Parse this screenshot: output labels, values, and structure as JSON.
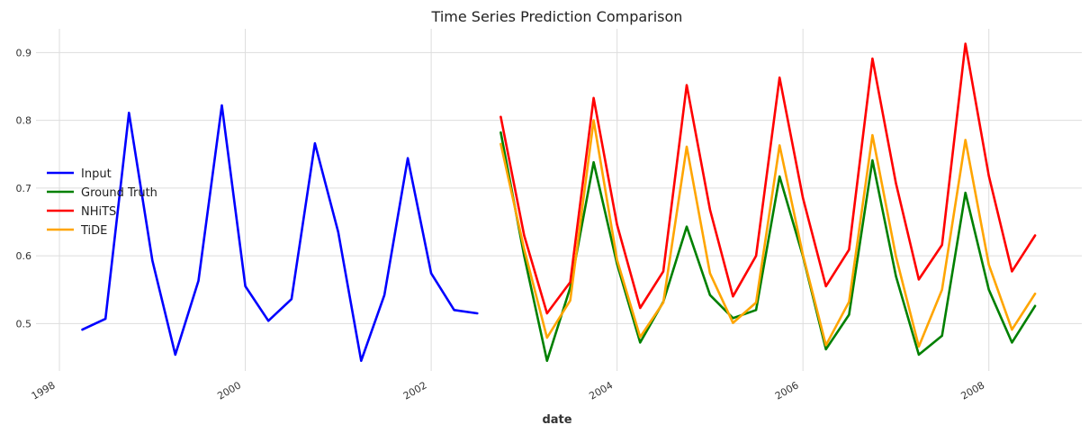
{
  "chart_data": {
    "type": "line",
    "title": "Time Series Prediction Comparison",
    "xlabel": "date",
    "ylabel": "",
    "xlim": [
      "1997-10-01",
      "2009-01-01"
    ],
    "ylim": [
      0.43,
      0.935
    ],
    "grid": true,
    "legend_placement": "center-left",
    "x_ticks": [
      "1998-01-01",
      "2000-01-01",
      "2002-01-01",
      "2004-01-01",
      "2006-01-01",
      "2008-01-01"
    ],
    "x_tick_labels": [
      "1998",
      "2000",
      "2002",
      "2004",
      "2006",
      "2008"
    ],
    "y_ticks": [
      0.5,
      0.6,
      0.7,
      0.8,
      0.9
    ],
    "y_tick_labels": [
      "0.5",
      "0.6",
      "0.7",
      "0.8",
      "0.9"
    ],
    "series": [
      {
        "name": "Input",
        "color": "#0000ff",
        "x": [
          "1998-04-01",
          "1998-07-01",
          "1998-10-01",
          "1999-01-01",
          "1999-04-01",
          "1999-07-01",
          "1999-10-01",
          "2000-01-01",
          "2000-04-01",
          "2000-07-01",
          "2000-10-01",
          "2001-01-01",
          "2001-04-01",
          "2001-07-01",
          "2001-10-01",
          "2002-01-01",
          "2002-04-01",
          "2002-07-01"
        ],
        "values": [
          0.491,
          0.507,
          0.811,
          0.593,
          0.454,
          0.563,
          0.822,
          0.555,
          0.504,
          0.536,
          0.766,
          0.635,
          0.445,
          0.542,
          0.744,
          0.574,
          0.52,
          0.515
        ]
      },
      {
        "name": "Ground Truth",
        "color": "#008000",
        "x": [
          "2002-10-01",
          "2003-01-01",
          "2003-04-01",
          "2003-07-01",
          "2003-10-01",
          "2004-01-01",
          "2004-04-01",
          "2004-07-01",
          "2004-10-01",
          "2005-01-01",
          "2005-04-01",
          "2005-07-01",
          "2005-10-01",
          "2006-01-01",
          "2006-04-01",
          "2006-07-01",
          "2006-10-01",
          "2007-01-01",
          "2007-04-01",
          "2007-07-01",
          "2007-10-01",
          "2008-01-01",
          "2008-04-01",
          "2008-07-01"
        ],
        "values": [
          0.782,
          0.6,
          0.445,
          0.553,
          0.738,
          0.588,
          0.472,
          0.532,
          0.643,
          0.542,
          0.508,
          0.52,
          0.717,
          0.599,
          0.462,
          0.513,
          0.741,
          0.57,
          0.454,
          0.482,
          0.693,
          0.55,
          0.472,
          0.526
        ]
      },
      {
        "name": "NHiTS",
        "color": "#ff0000",
        "x": [
          "2002-10-01",
          "2003-01-01",
          "2003-04-01",
          "2003-07-01",
          "2003-10-01",
          "2004-01-01",
          "2004-04-01",
          "2004-07-01",
          "2004-10-01",
          "2005-01-01",
          "2005-04-01",
          "2005-07-01",
          "2005-10-01",
          "2006-01-01",
          "2006-04-01",
          "2006-07-01",
          "2006-10-01",
          "2007-01-01",
          "2007-04-01",
          "2007-07-01",
          "2007-10-01",
          "2008-01-01",
          "2008-04-01",
          "2008-07-01"
        ],
        "values": [
          0.805,
          0.63,
          0.515,
          0.561,
          0.833,
          0.646,
          0.523,
          0.577,
          0.852,
          0.668,
          0.54,
          0.6,
          0.863,
          0.685,
          0.555,
          0.609,
          0.891,
          0.707,
          0.565,
          0.616,
          0.913,
          0.718,
          0.577,
          0.63
        ]
      },
      {
        "name": "TiDE",
        "color": "#ffa500",
        "x": [
          "2002-10-01",
          "2003-01-01",
          "2003-04-01",
          "2003-07-01",
          "2003-10-01",
          "2004-01-01",
          "2004-04-01",
          "2004-07-01",
          "2004-10-01",
          "2005-01-01",
          "2005-04-01",
          "2005-07-01",
          "2005-10-01",
          "2006-01-01",
          "2006-04-01",
          "2006-07-01",
          "2006-10-01",
          "2007-01-01",
          "2007-04-01",
          "2007-07-01",
          "2007-10-01",
          "2008-01-01",
          "2008-04-01",
          "2008-07-01"
        ],
        "values": [
          0.765,
          0.61,
          0.479,
          0.534,
          0.8,
          0.594,
          0.48,
          0.531,
          0.761,
          0.574,
          0.501,
          0.531,
          0.763,
          0.601,
          0.468,
          0.532,
          0.778,
          0.599,
          0.466,
          0.55,
          0.771,
          0.587,
          0.491,
          0.544
        ]
      }
    ]
  }
}
